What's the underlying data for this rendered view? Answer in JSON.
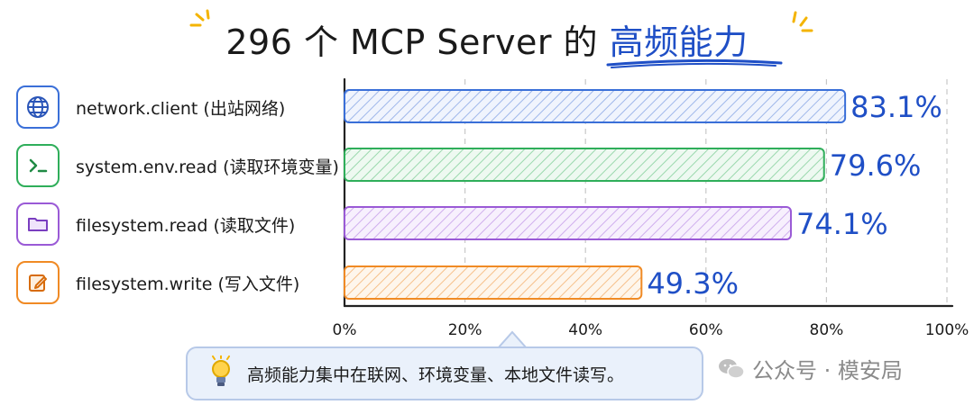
{
  "title": {
    "prefix": "296 个 MCP Server 的 ",
    "highlight": "高频能力",
    "accent_color": "#1f4fc6"
  },
  "chart_data": {
    "type": "bar",
    "orientation": "horizontal",
    "categories": [
      "network.client (出站网络)",
      "system.env.read (读取环境变量)",
      "filesystem.read (读取文件)",
      "filesystem.write (写入文件)"
    ],
    "values": [
      83.1,
      79.6,
      74.1,
      49.3
    ],
    "value_labels": [
      "83.1%",
      "79.6%",
      "74.1%",
      "49.3%"
    ],
    "xlim": [
      0,
      100
    ],
    "xticks": [
      "0%",
      "20%",
      "40%",
      "60%",
      "80%",
      "100%"
    ],
    "grid": "vertical-dashed",
    "bar_colors": [
      "#3a6fd8",
      "#2fae5a",
      "#9a5ad6",
      "#f08a24"
    ],
    "bar_fill_colors": [
      "#dfe8fb",
      "#dff4e6",
      "#efe4fb",
      "#fdeedd"
    ],
    "value_label_color": "#1f4fc6"
  },
  "labels": [
    {
      "text": "network.client (出站网络)",
      "icon": "globe-icon",
      "color": "#3a6fd8"
    },
    {
      "text": "system.env.read (读取环境变量)",
      "icon": "terminal-icon",
      "color": "#2fae5a"
    },
    {
      "text": "filesystem.read (读取文件)",
      "icon": "folder-icon",
      "color": "#9a5ad6"
    },
    {
      "text": "filesystem.write (写入文件)",
      "icon": "edit-icon",
      "color": "#f08a24"
    }
  ],
  "callout": {
    "text": "高频能力集中在联网、环境变量、本地文件读写。",
    "icon": "lightbulb-icon"
  },
  "watermark": {
    "text": "公众号 · 模安局",
    "icon": "wechat-icon"
  }
}
